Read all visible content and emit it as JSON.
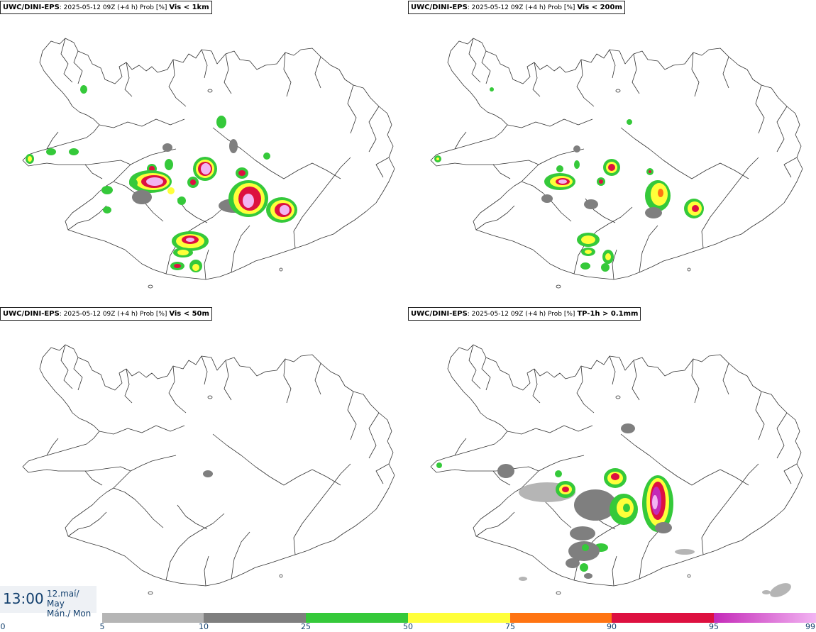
{
  "panels": [
    {
      "model": "UWC/DINI-EPS",
      "info": ": 2025-05-12 09Z (+4 h) Prob [%] ",
      "param": "Vis < 1km"
    },
    {
      "model": "UWC/DINI-EPS",
      "info": ": 2025-05-12 09Z (+4 h) Prob [%] ",
      "param": "Vis < 200m"
    },
    {
      "model": "UWC/DINI-EPS",
      "info": ": 2025-05-12 09Z (+4 h) Prob [%] ",
      "param": "Vis < 50m"
    },
    {
      "model": "UWC/DINI-EPS",
      "info": ": 2025-05-12 09Z (+4 h) Prob [%] ",
      "param": "TP-1h > 0.1mm"
    }
  ],
  "valid_time": {
    "time": "13:00",
    "date_line1": "12.maí/ May",
    "date_line2": "Mán./ Mon"
  },
  "legend": {
    "ticks": [
      "0",
      "5",
      "10",
      "25",
      "50",
      "75",
      "90",
      "95",
      "99"
    ],
    "colors": [
      "#ffffff",
      "#b5b5b5",
      "#7f7f7f",
      "#35c93a",
      "#ffff3a",
      "#ff7412",
      "#dd1040",
      "#c42ab8",
      "#f2b4f2"
    ]
  }
}
